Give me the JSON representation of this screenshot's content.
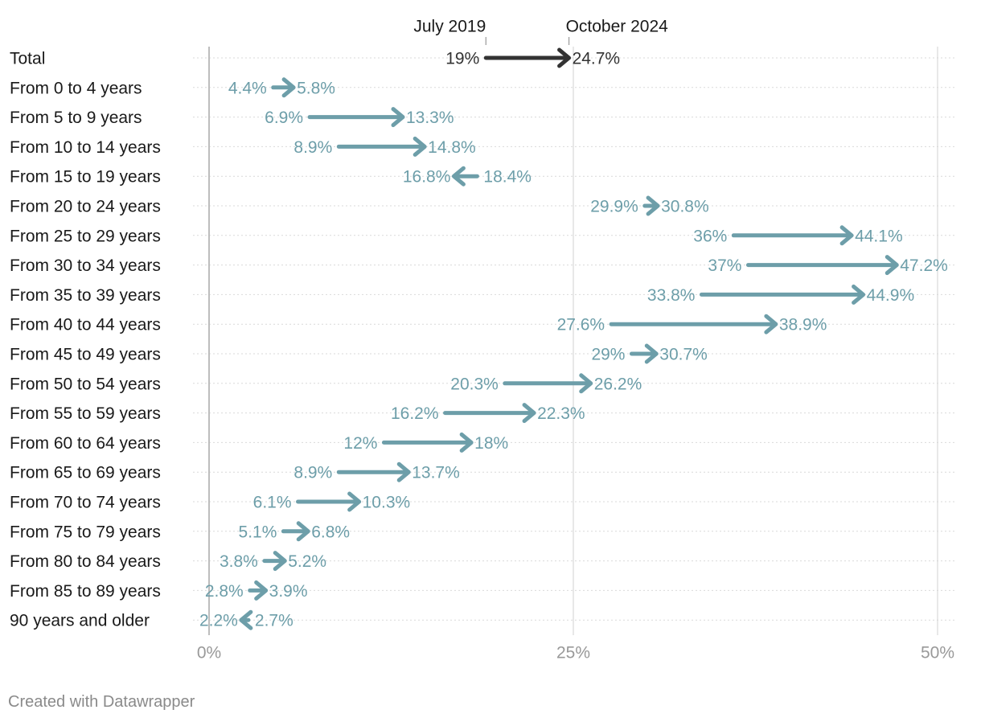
{
  "chart_data": {
    "type": "arrow-plot",
    "title": "",
    "legend": {
      "start_label": "July 2019",
      "end_label": "October 2024"
    },
    "xlim": [
      0,
      50
    ],
    "x_ticks": [
      0,
      25,
      50
    ],
    "x_tick_labels": [
      "0%",
      "25%",
      "50%"
    ],
    "value_suffix": "%",
    "grid": true,
    "categories": [
      "Total",
      "From 0 to 4 years",
      "From 5 to 9 years",
      "From 10 to 14 years",
      "From 15 to 19 years",
      "From 20 to 24 years",
      "From 25 to 29 years",
      "From 30 to 34 years",
      "From 35 to 39 years",
      "From 40 to 44 years",
      "From 45 to 49 years",
      "From 50 to 54 years",
      "From 55 to 59 years",
      "From 60 to 64 years",
      "From 65 to 69 years",
      "From 70 to 74 years",
      "From 75 to 79 years",
      "From 80 to 84 years",
      "From 85 to 89 years",
      "90 years and older"
    ],
    "series": [
      {
        "name": "July 2019",
        "values": [
          19,
          4.4,
          6.9,
          8.9,
          18.4,
          29.9,
          36,
          37,
          33.8,
          27.6,
          29,
          20.3,
          16.2,
          12,
          8.9,
          6.1,
          5.1,
          3.8,
          2.8,
          2.7
        ],
        "labels": [
          "19%",
          "4.4%",
          "6.9%",
          "8.9%",
          "18.4%",
          "29.9%",
          "36%",
          "37%",
          "33.8%",
          "27.6%",
          "29%",
          "20.3%",
          "16.2%",
          "12%",
          "8.9%",
          "6.1%",
          "5.1%",
          "3.8%",
          "2.8%",
          "2.7%"
        ]
      },
      {
        "name": "October 2024",
        "values": [
          24.7,
          5.8,
          13.3,
          14.8,
          16.8,
          30.8,
          44.1,
          47.2,
          44.9,
          38.9,
          30.7,
          26.2,
          22.3,
          18,
          13.7,
          10.3,
          6.8,
          5.2,
          3.9,
          2.2
        ],
        "labels": [
          "24.7%",
          "5.8%",
          "13.3%",
          "14.8%",
          "16.8%",
          "30.8%",
          "44.1%",
          "47.2%",
          "44.9%",
          "38.9%",
          "30.7%",
          "26.2%",
          "22.3%",
          "18%",
          "13.7%",
          "10.3%",
          "6.8%",
          "5.2%",
          "3.9%",
          "2.2%"
        ]
      }
    ],
    "colors": {
      "highlight": "#333333",
      "series": "#6d9ea9",
      "label_text": "#1a1a1a",
      "axis_text": "#999999",
      "grid": "#d9d9d9",
      "zero_line": "#bdbdbd"
    }
  },
  "footer": {
    "credit": "Created with Datawrapper"
  }
}
